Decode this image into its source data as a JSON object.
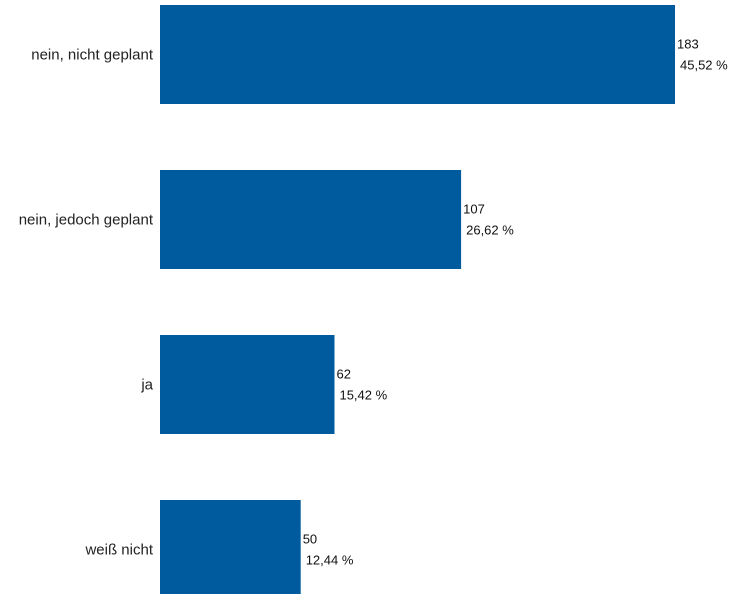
{
  "chart_data": {
    "type": "bar",
    "orientation": "horizontal",
    "categories": [
      "nein, nicht geplant",
      "nein, jedoch geplant",
      "ja",
      "weiß nicht"
    ],
    "values": [
      183,
      107,
      62,
      50
    ],
    "percent_labels": [
      "45,52 %",
      "26,62 %",
      "15,42 %",
      "12,44 %"
    ],
    "bar_color": "#005a9e",
    "grid": false,
    "legend": "none",
    "xlim": [
      0,
      183
    ]
  }
}
